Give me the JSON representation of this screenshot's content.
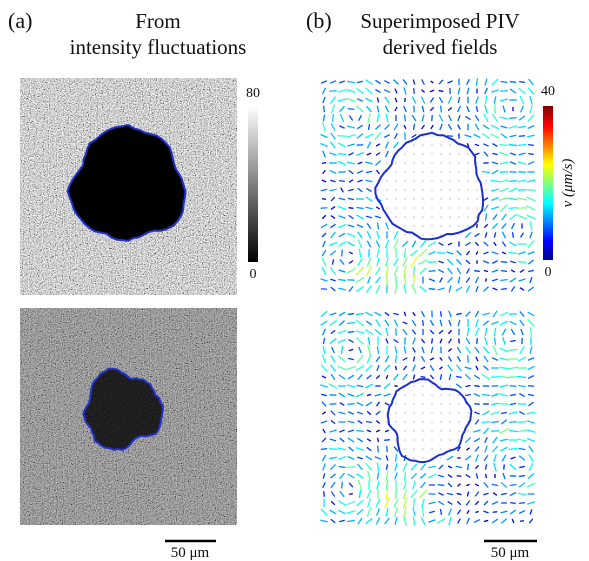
{
  "panels": [
    {
      "label": "(a)",
      "title": [
        "From",
        "intensity fluctuations"
      ],
      "colorbar": {
        "max": 80,
        "min": 0
      },
      "scale_bar": "50 μm"
    },
    {
      "label": "(b)",
      "title": [
        "Superimposed PIV",
        "derived fields"
      ],
      "colorbar": {
        "max": 40,
        "min": 0,
        "label": "v (μm/s)"
      },
      "scale_bar": "50 μm"
    }
  ]
}
